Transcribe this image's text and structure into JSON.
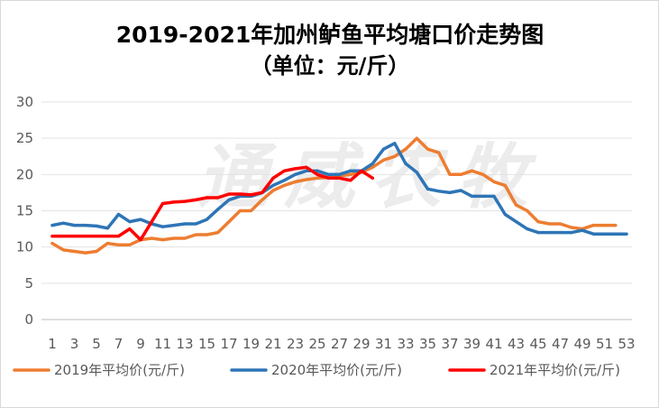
{
  "chart_data": {
    "type": "line",
    "title": "2019-2021年加州鲈鱼平均塘口价走势图",
    "subtitle": "（单位：元/斤）",
    "watermark": "通威农牧",
    "xlabel": "",
    "ylabel": "",
    "ylim": [
      0,
      30
    ],
    "yticks": [
      0,
      5,
      10,
      15,
      20,
      25,
      30
    ],
    "xticks": [
      1,
      3,
      5,
      7,
      9,
      11,
      13,
      15,
      17,
      19,
      21,
      23,
      25,
      27,
      29,
      31,
      33,
      35,
      37,
      39,
      41,
      43,
      45,
      47,
      49,
      51,
      53
    ],
    "xlim": [
      1,
      53
    ],
    "grid": "horizontal",
    "legend_position": "bottom",
    "series": [
      {
        "name": "2019年平均价(元/斤)",
        "color": "#ED7D31",
        "x": [
          1,
          2,
          3,
          4,
          5,
          6,
          7,
          8,
          9,
          10,
          11,
          12,
          13,
          14,
          15,
          16,
          17,
          18,
          19,
          20,
          21,
          22,
          23,
          24,
          25,
          26,
          27,
          28,
          29,
          30,
          31,
          32,
          33,
          34,
          35,
          36,
          37,
          38,
          39,
          40,
          41,
          42,
          43,
          44,
          45,
          46,
          47,
          48,
          49,
          50,
          51,
          52
        ],
        "values": [
          10.5,
          9.6,
          9.4,
          9.2,
          9.4,
          10.5,
          10.3,
          10.3,
          11.0,
          11.2,
          11.0,
          11.2,
          11.2,
          11.7,
          11.7,
          12.0,
          13.5,
          15.0,
          15.0,
          16.5,
          17.8,
          18.5,
          19.0,
          19.3,
          19.5,
          19.6,
          19.8,
          20.0,
          20.3,
          21.0,
          22.0,
          22.5,
          23.5,
          25.0,
          23.5,
          23.0,
          20.0,
          20.0,
          20.5,
          20.0,
          19.0,
          18.5,
          15.8,
          15.0,
          13.5,
          13.2,
          13.2,
          12.7,
          12.5,
          13.0,
          13.0,
          13.0
        ]
      },
      {
        "name": "2020年平均价(元/斤)",
        "color": "#2E75B6",
        "x": [
          1,
          2,
          3,
          4,
          5,
          6,
          7,
          8,
          9,
          10,
          11,
          12,
          13,
          14,
          15,
          16,
          17,
          18,
          19,
          20,
          21,
          22,
          23,
          24,
          25,
          26,
          27,
          28,
          29,
          30,
          31,
          32,
          33,
          34,
          35,
          36,
          37,
          38,
          39,
          40,
          41,
          42,
          43,
          44,
          45,
          46,
          47,
          48,
          49,
          50,
          51,
          52,
          53
        ],
        "values": [
          13.0,
          13.3,
          13.0,
          13.0,
          12.9,
          12.6,
          14.5,
          13.5,
          13.8,
          13.2,
          12.8,
          13.0,
          13.2,
          13.2,
          13.8,
          15.2,
          16.5,
          17.0,
          17.0,
          17.5,
          18.5,
          19.2,
          20.0,
          20.5,
          20.5,
          20.0,
          20.0,
          20.5,
          20.5,
          21.5,
          23.5,
          24.3,
          21.5,
          20.3,
          18.0,
          17.7,
          17.5,
          17.8,
          17.0,
          17.0,
          17.0,
          14.5,
          13.5,
          12.5,
          12.0,
          12.0,
          12.0,
          12.0,
          12.3,
          11.8,
          11.8,
          11.8,
          11.8
        ]
      },
      {
        "name": "2021年平均价(元/斤)",
        "color": "#FF0000",
        "x": [
          1,
          2,
          3,
          4,
          5,
          6,
          7,
          8,
          9,
          10,
          11,
          12,
          13,
          14,
          15,
          16,
          17,
          18,
          19,
          20,
          21,
          22,
          23,
          24,
          25,
          26,
          27,
          28,
          29,
          30
        ],
        "values": [
          11.5,
          11.5,
          11.5,
          11.5,
          11.5,
          11.5,
          11.5,
          12.5,
          11.0,
          13.5,
          16.0,
          16.2,
          16.3,
          16.5,
          16.8,
          16.8,
          17.3,
          17.3,
          17.2,
          17.5,
          19.5,
          20.5,
          20.8,
          21.0,
          20.0,
          19.5,
          19.5,
          19.2,
          20.5,
          19.5
        ]
      }
    ]
  }
}
